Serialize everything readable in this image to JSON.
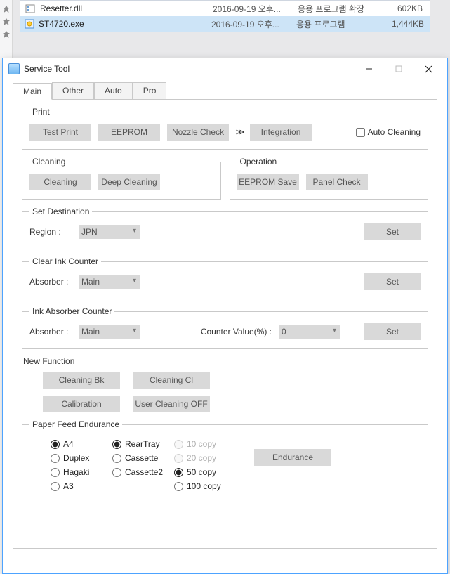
{
  "colors": {
    "accent": "#4da3ff",
    "btn": "#d9d9d9",
    "border": "#c9c9c9",
    "selection": "#cde4f7"
  },
  "files": [
    {
      "name": "Resetter.dll",
      "date": "2016-09-19 오후...",
      "type": "응용 프로그램 확장",
      "size": "602KB",
      "selected": false,
      "icon": "dll"
    },
    {
      "name": "ST4720.exe",
      "date": "2016-09-19 오후...",
      "type": "응용 프로그램",
      "size": "1,444KB",
      "selected": true,
      "icon": "exe"
    }
  ],
  "window": {
    "title": "Service Tool",
    "tabs": [
      "Main",
      "Other",
      "Auto",
      "Pro"
    ],
    "active_tab": "Main"
  },
  "print": {
    "legend": "Print",
    "test_print": "Test Print",
    "eeprom": "EEPROM",
    "nozzle_check": "Nozzle Check",
    "chevron": ">>",
    "integration": "Integration",
    "auto_cleaning": "Auto Cleaning",
    "auto_cleaning_checked": false
  },
  "cleaning": {
    "legend": "Cleaning",
    "cleaning": "Cleaning",
    "deep_cleaning": "Deep Cleaning"
  },
  "operation": {
    "legend": "Operation",
    "eeprom_save": "EEPROM Save",
    "panel_check": "Panel Check"
  },
  "set_destination": {
    "legend": "Set Destination",
    "region_label": "Region :",
    "region_value": "JPN",
    "set": "Set"
  },
  "clear_ink": {
    "legend": "Clear Ink Counter",
    "absorber_label": "Absorber :",
    "absorber_value": "Main",
    "set": "Set"
  },
  "ink_absorber": {
    "legend": "Ink Absorber Counter",
    "absorber_label": "Absorber :",
    "absorber_value": "Main",
    "counter_label": "Counter Value(%) :",
    "counter_value": "0",
    "set": "Set"
  },
  "new_function": {
    "title": "New Function",
    "cleaning_bk": "Cleaning Bk",
    "cleaning_cl": "Cleaning Cl",
    "calibration": "Calibration",
    "user_cleaning_off": "User Cleaning OFF"
  },
  "paper_feed": {
    "legend": "Paper Feed Endurance",
    "size": {
      "options": [
        "A4",
        "Duplex",
        "Hagaki",
        "A3"
      ],
      "selected": "A4"
    },
    "source": {
      "options": [
        "RearTray",
        "Cassette",
        "Cassette2"
      ],
      "selected": "RearTray"
    },
    "copies": {
      "options": [
        "10 copy",
        "20 copy",
        "50 copy",
        "100 copy"
      ],
      "selected": "50 copy",
      "disabled": [
        "10 copy",
        "20 copy"
      ]
    },
    "endurance": "Endurance"
  }
}
